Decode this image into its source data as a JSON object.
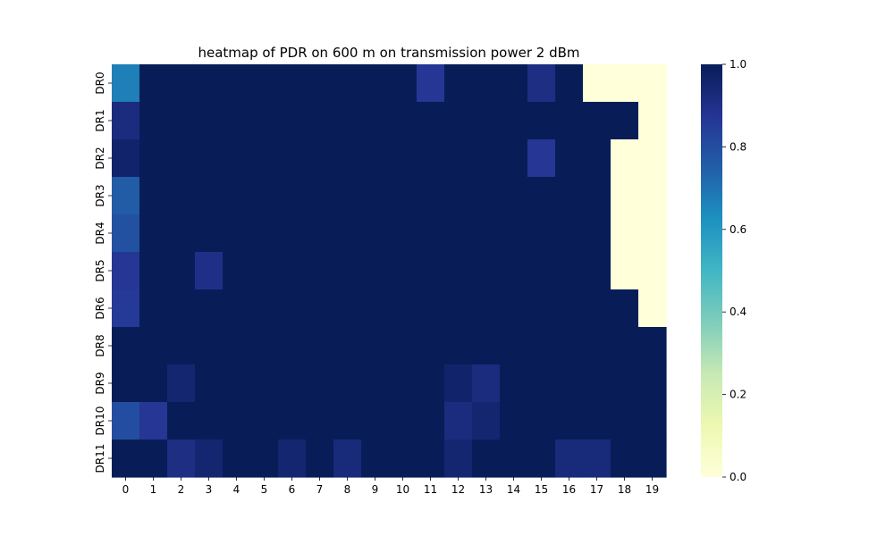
{
  "chart_data": {
    "type": "heatmap",
    "title": "heatmap of PDR on 600 m on transmission power 2 dBm",
    "xlabel": "",
    "ylabel": "",
    "x_categories": [
      "0",
      "1",
      "2",
      "3",
      "4",
      "5",
      "6",
      "7",
      "8",
      "9",
      "10",
      "11",
      "12",
      "13",
      "14",
      "15",
      "16",
      "17",
      "18",
      "19"
    ],
    "y_categories": [
      "DR0",
      "DR1",
      "DR2",
      "DR3",
      "DR4",
      "DR5",
      "DR6",
      "DR8",
      "DR9",
      "DR10",
      "DR11"
    ],
    "values": [
      [
        0.67,
        1,
        1,
        1,
        1,
        1,
        1,
        1,
        1,
        1,
        1,
        0.87,
        1,
        1,
        1,
        0.91,
        1,
        0,
        0,
        0
      ],
      [
        0.92,
        1,
        1,
        1,
        1,
        1,
        1,
        1,
        1,
        1,
        1,
        1,
        1,
        1,
        1,
        1,
        1,
        1,
        1,
        0
      ],
      [
        0.96,
        1,
        1,
        1,
        1,
        1,
        1,
        1,
        1,
        1,
        1,
        1,
        1,
        1,
        1,
        0.87,
        1,
        1,
        0,
        0
      ],
      [
        0.76,
        1,
        1,
        1,
        1,
        1,
        1,
        1,
        1,
        1,
        1,
        1,
        1,
        1,
        1,
        1,
        1,
        1,
        0,
        0
      ],
      [
        0.79,
        1,
        1,
        1,
        1,
        1,
        1,
        1,
        1,
        1,
        1,
        1,
        1,
        1,
        1,
        1,
        1,
        1,
        0,
        0
      ],
      [
        0.87,
        1,
        1,
        0.9,
        1,
        1,
        1,
        1,
        1,
        1,
        1,
        1,
        1,
        1,
        1,
        1,
        1,
        1,
        0,
        0
      ],
      [
        0.86,
        1,
        1,
        1,
        1,
        1,
        1,
        1,
        1,
        1,
        1,
        1,
        1,
        1,
        1,
        1,
        1,
        1,
        1,
        0
      ],
      [
        1,
        1,
        1,
        1,
        1,
        1,
        1,
        1,
        1,
        1,
        1,
        1,
        1,
        1,
        1,
        1,
        1,
        1,
        1,
        1
      ],
      [
        1,
        1,
        0.95,
        1,
        1,
        1,
        1,
        1,
        1,
        1,
        1,
        1,
        0.96,
        0.92,
        1,
        1,
        1,
        1,
        1,
        1
      ],
      [
        0.8,
        0.87,
        1,
        1,
        1,
        1,
        1,
        1,
        1,
        1,
        1,
        1,
        0.92,
        0.95,
        1,
        1,
        1,
        1,
        1,
        1
      ],
      [
        1,
        1,
        0.91,
        0.95,
        1,
        1,
        0.95,
        1,
        0.93,
        1,
        1,
        1,
        0.95,
        1,
        1,
        1,
        0.93,
        0.93,
        1,
        1
      ]
    ],
    "colorbar": {
      "min": 0,
      "max": 1,
      "ticks": [
        "0.0",
        "0.2",
        "0.4",
        "0.6",
        "0.8",
        "1.0"
      ],
      "colormap": "YlGnBu",
      "stops": [
        "#ffffd9",
        "#edf8b1",
        "#c7e9b4",
        "#7fcdbb",
        "#41b6c4",
        "#1d91c0",
        "#225ea8",
        "#253494",
        "#081d58"
      ]
    },
    "grid": false
  }
}
